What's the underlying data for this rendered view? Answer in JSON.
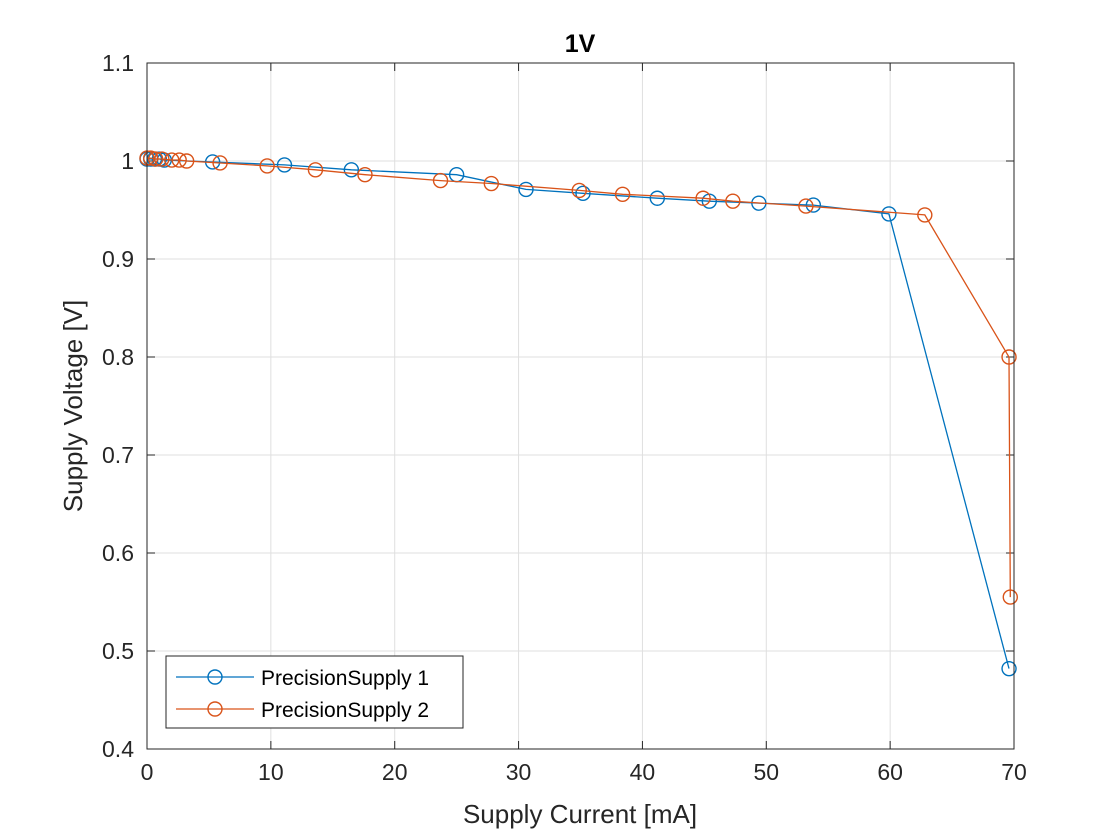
{
  "chart_data": {
    "type": "line",
    "title": "1V",
    "xlabel": "Supply Current [mA]",
    "ylabel": "Supply Voltage [V]",
    "xlim": [
      0,
      70
    ],
    "ylim": [
      0.4,
      1.1
    ],
    "xticks": [
      0,
      10,
      20,
      30,
      40,
      50,
      60,
      70
    ],
    "yticks": [
      0.4,
      0.5,
      0.6,
      0.7,
      0.8,
      0.9,
      1.0,
      1.1
    ],
    "xtick_labels": [
      "0",
      "10",
      "20",
      "30",
      "40",
      "50",
      "60",
      "70"
    ],
    "ytick_labels": [
      "0.4",
      "0.5",
      "0.6",
      "0.7",
      "0.8",
      "0.9",
      "1",
      "1.1"
    ],
    "grid": true,
    "legend_position": "bottom-left",
    "marker": "circle",
    "series": [
      {
        "name": "PrecisionSupply 1",
        "color": "#0072BD",
        "x": [
          0.0,
          0.3,
          0.6,
          1.0,
          1.4,
          5.3,
          11.1,
          16.5,
          25.0,
          30.6,
          35.2,
          41.2,
          45.4,
          49.4,
          53.8,
          59.9,
          69.6
        ],
        "y": [
          1.002,
          1.002,
          1.002,
          1.002,
          1.001,
          0.999,
          0.996,
          0.991,
          0.986,
          0.971,
          0.967,
          0.962,
          0.959,
          0.957,
          0.955,
          0.946,
          0.482
        ]
      },
      {
        "name": "PrecisionSupply 2",
        "color": "#D95319",
        "x": [
          0.0,
          0.3,
          0.7,
          1.2,
          2.0,
          2.6,
          3.2,
          5.9,
          9.7,
          13.6,
          17.6,
          23.7,
          27.8,
          34.9,
          38.4,
          44.9,
          47.3,
          53.2,
          62.8,
          69.6,
          69.7
        ],
        "y": [
          1.003,
          1.003,
          1.002,
          1.002,
          1.001,
          1.001,
          1.0,
          0.998,
          0.995,
          0.991,
          0.986,
          0.98,
          0.977,
          0.97,
          0.966,
          0.962,
          0.959,
          0.954,
          0.945,
          0.8,
          0.555
        ]
      }
    ]
  }
}
